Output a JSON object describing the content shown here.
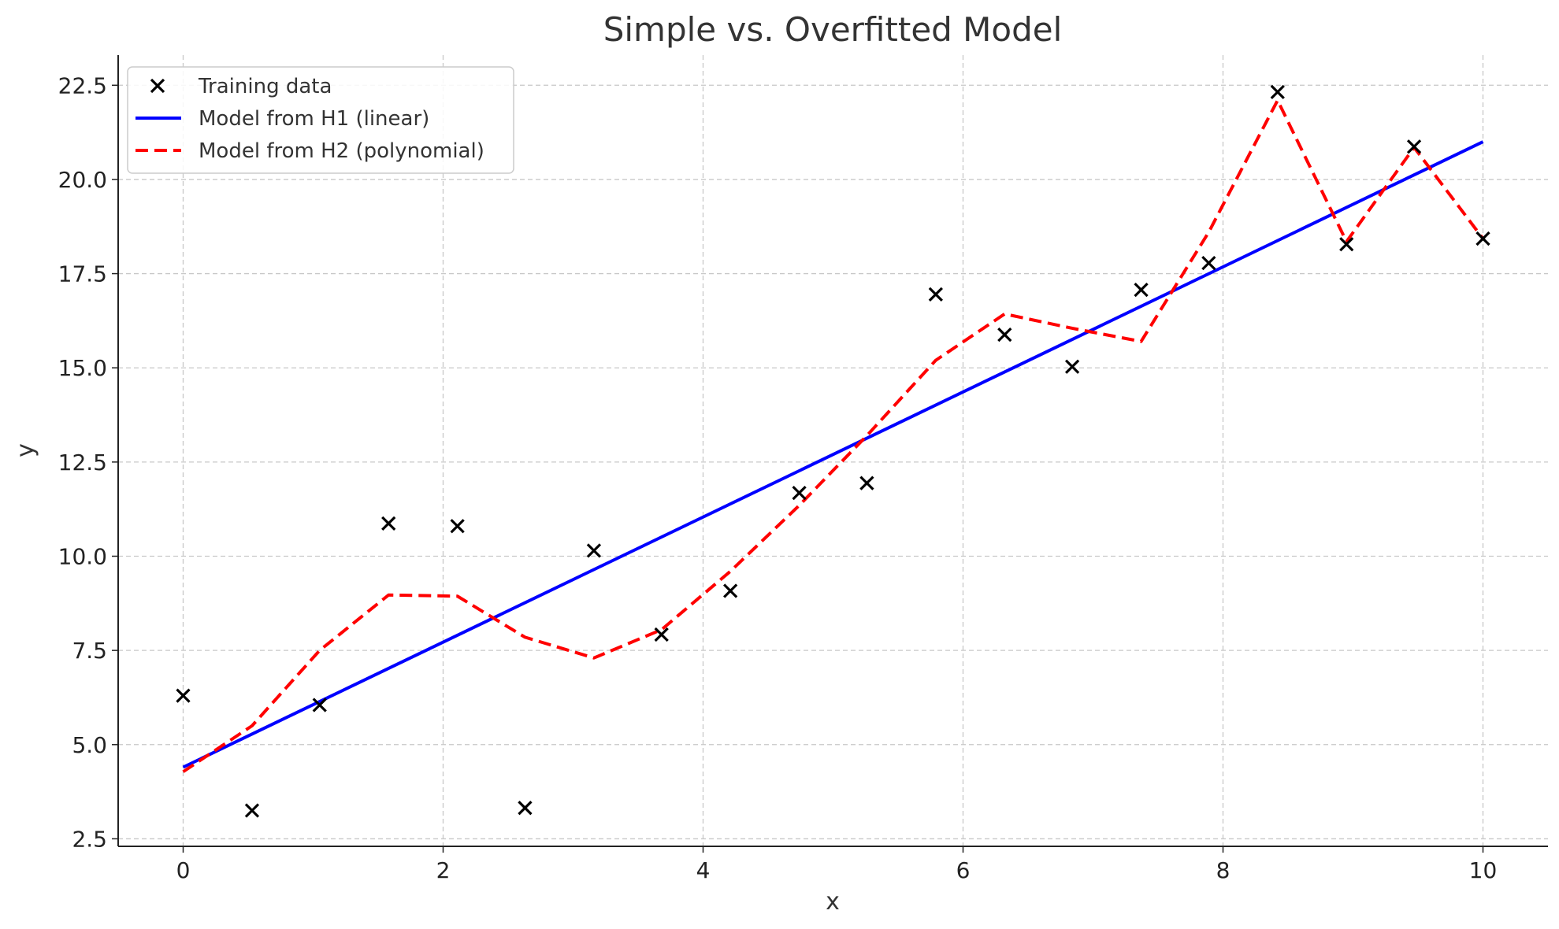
{
  "chart_data": {
    "type": "line",
    "title": "Simple vs. Overfitted Model",
    "xlabel": "x",
    "ylabel": "y",
    "xlim": [
      -0.5,
      10.5
    ],
    "ylim": [
      2.3,
      23.3
    ],
    "xticks": [
      0,
      2,
      4,
      6,
      8,
      10
    ],
    "xtick_labels": [
      "0",
      "2",
      "4",
      "6",
      "8",
      "10"
    ],
    "yticks": [
      2.5,
      5.0,
      7.5,
      10.0,
      12.5,
      15.0,
      17.5,
      20.0,
      22.5
    ],
    "ytick_labels": [
      "2.5",
      "5.0",
      "7.5",
      "10.0",
      "12.5",
      "15.0",
      "17.5",
      "20.0",
      "22.5"
    ],
    "grid": true,
    "legend_position": "top-left",
    "series": [
      {
        "name": "Training data",
        "kind": "scatter",
        "marker": "x",
        "color": "#000000",
        "x": [
          0,
          0.53,
          1.05,
          1.58,
          2.11,
          2.63,
          3.16,
          3.68,
          4.21,
          4.74,
          5.26,
          5.79,
          6.32,
          6.84,
          7.37,
          7.89,
          8.42,
          8.95,
          9.47,
          10.0
        ],
        "y": [
          6.3,
          3.25,
          6.05,
          10.87,
          10.8,
          3.32,
          10.15,
          7.92,
          9.08,
          11.68,
          11.94,
          16.95,
          15.88,
          15.03,
          17.07,
          17.78,
          22.32,
          18.28,
          20.87,
          18.43
        ]
      },
      {
        "name": "Model from H1 (linear)",
        "kind": "line",
        "style": "solid",
        "color": "#0000ff",
        "x": [
          0,
          10
        ],
        "y": [
          4.4,
          21.0
        ]
      },
      {
        "name": "Model from H2 (polynomial)",
        "kind": "line",
        "style": "dashed",
        "color": "#ff0000",
        "x": [
          0,
          0.53,
          1.05,
          1.58,
          2.11,
          2.63,
          3.16,
          3.68,
          4.21,
          4.74,
          5.26,
          5.79,
          6.32,
          6.84,
          7.37,
          7.89,
          8.42,
          8.95,
          9.47,
          10.0
        ],
        "y": [
          4.28,
          5.5,
          7.5,
          8.97,
          8.94,
          7.85,
          7.3,
          8.05,
          9.6,
          11.35,
          13.2,
          15.2,
          16.43,
          16.05,
          15.7,
          18.6,
          22.1,
          18.35,
          20.85,
          18.43
        ]
      }
    ]
  }
}
